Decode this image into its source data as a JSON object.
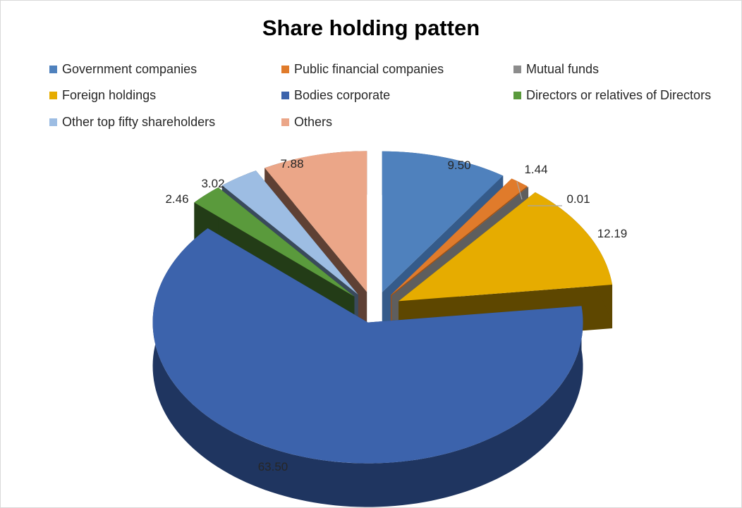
{
  "chart_data": {
    "type": "pie",
    "title": "Share holding patten",
    "legend_position": "top",
    "slices": [
      {
        "label": "Government companies",
        "value": 9.5,
        "display": "9.50",
        "color": "#4f81bd",
        "side": "#355b8a"
      },
      {
        "label": "Public financial companies",
        "value": 1.44,
        "display": "1.44",
        "color": "#e07b2b",
        "side": "#9c5218"
      },
      {
        "label": "Mutual funds",
        "value": 0.01,
        "display": "0.01",
        "color": "#8c8c8c",
        "side": "#5e5e5e"
      },
      {
        "label": "Foreign holdings",
        "value": 12.19,
        "display": "12.19",
        "color": "#e6ac00",
        "side": "#5e4700"
      },
      {
        "label": "Bodies corporate",
        "value": 63.5,
        "display": "63.50",
        "color": "#3c63ac",
        "side": "#1f3560"
      },
      {
        "label": "Directors or relatives of Directors",
        "value": 2.46,
        "display": "2.46",
        "color": "#5a9a3c",
        "side": "#233c17"
      },
      {
        "label": "Other top fifty shareholders",
        "value": 3.02,
        "display": "3.02",
        "color": "#9dbde3",
        "side": "#3a4a5c"
      },
      {
        "label": "Others",
        "value": 7.88,
        "display": "7.88",
        "color": "#eba688",
        "side": "#5e4034"
      }
    ]
  }
}
